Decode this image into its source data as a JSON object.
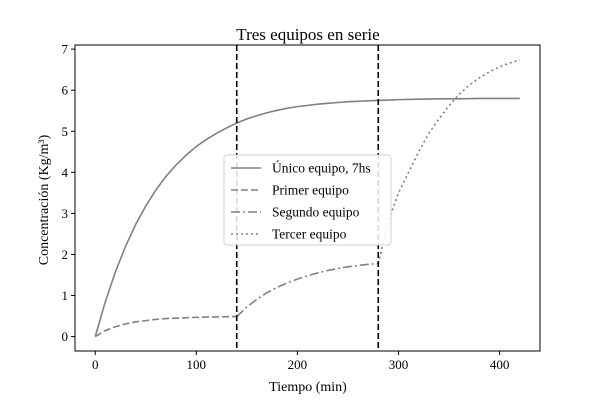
{
  "chart_data": {
    "type": "line",
    "title": "Tres equipos en serie",
    "xlabel": "Tiempo (min)",
    "ylabel": "Concentración (Kg/m³)",
    "xlim": [
      -20,
      440
    ],
    "ylim": [
      -0.35,
      7.1
    ],
    "x_ticks": [
      0,
      100,
      200,
      300,
      400
    ],
    "y_ticks": [
      0,
      1,
      2,
      3,
      4,
      5,
      6,
      7
    ],
    "grid": false,
    "legend_position": "center",
    "vlines": [
      140,
      280
    ],
    "series": [
      {
        "name": "Único equipo, 7hs",
        "style": "solid",
        "color": "#808080",
        "x": [
          0,
          10,
          20,
          30,
          40,
          50,
          60,
          70,
          80,
          90,
          100,
          110,
          120,
          130,
          140,
          150,
          160,
          170,
          180,
          190,
          200,
          210,
          220,
          230,
          240,
          250,
          260,
          270,
          280,
          290,
          300,
          320,
          340,
          360,
          380,
          400,
          420
        ],
        "y": [
          0,
          0.85,
          1.58,
          2.2,
          2.73,
          3.18,
          3.57,
          3.9,
          4.18,
          4.42,
          4.63,
          4.8,
          4.95,
          5.08,
          5.2,
          5.3,
          5.38,
          5.45,
          5.51,
          5.56,
          5.6,
          5.63,
          5.66,
          5.68,
          5.7,
          5.72,
          5.73,
          5.74,
          5.75,
          5.76,
          5.77,
          5.78,
          5.79,
          5.79,
          5.8,
          5.8,
          5.8
        ]
      },
      {
        "name": "Primer equipo",
        "style": "dashed",
        "color": "#808080",
        "x": [
          0,
          10,
          20,
          30,
          40,
          50,
          60,
          70,
          80,
          90,
          100,
          110,
          120,
          130,
          140
        ],
        "y": [
          0,
          0.15,
          0.24,
          0.31,
          0.36,
          0.39,
          0.42,
          0.44,
          0.45,
          0.46,
          0.47,
          0.475,
          0.48,
          0.485,
          0.49
        ]
      },
      {
        "name": "Segundo equipo",
        "style": "dashdot",
        "color": "#808080",
        "x": [
          140,
          150,
          160,
          170,
          180,
          190,
          200,
          210,
          220,
          230,
          240,
          250,
          260,
          270,
          280
        ],
        "y": [
          0.49,
          0.72,
          0.91,
          1.07,
          1.2,
          1.31,
          1.4,
          1.48,
          1.55,
          1.61,
          1.66,
          1.7,
          1.73,
          1.76,
          1.78
        ]
      },
      {
        "name": "Tercer equipo",
        "style": "dotted",
        "color": "#808080",
        "x": [
          280,
          290,
          300,
          310,
          320,
          330,
          340,
          350,
          360,
          370,
          380,
          390,
          400,
          410,
          420
        ],
        "y": [
          1.78,
          2.8,
          3.5,
          4.0,
          4.5,
          4.95,
          5.3,
          5.62,
          5.9,
          6.12,
          6.3,
          6.45,
          6.57,
          6.66,
          6.74
        ]
      }
    ]
  }
}
